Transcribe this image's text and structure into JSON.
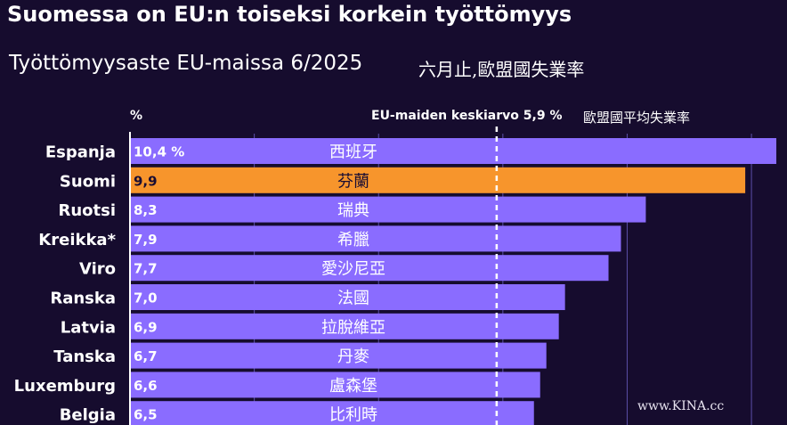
{
  "title": "Suomessa on EU:n toiseksi korkein työttömyys",
  "subtitle": "Työttömyysaste EU-maissa 6/2025",
  "subtitle_zh": "六月止,歐盟國失業率",
  "watermark": "www.KINA.cc",
  "colors": {
    "background": "#160c2e",
    "bar": "#8a6cff",
    "highlight": "#f7952c",
    "grid": "#5b4fa8"
  },
  "chart_data": {
    "type": "bar",
    "orientation": "horizontal",
    "unit_label": "%",
    "average": {
      "value": 5.9,
      "label": "EU-maiden keskiarvo 5,9 %",
      "label_zh": "歐盟國平均失業率"
    },
    "xlim": [
      0,
      10.4
    ],
    "gridlines": [
      2,
      4,
      6,
      8,
      10
    ],
    "highlight_category": "Suomi",
    "categories": [
      "Espanja",
      "Suomi",
      "Ruotsi",
      "Kreikka*",
      "Viro",
      "Ranska",
      "Latvia",
      "Tanska",
      "Luxemburg",
      "Belgia"
    ],
    "categories_zh": [
      "西班牙",
      "芬蘭",
      "瑞典",
      "希臘",
      "愛沙尼亞",
      "法國",
      "拉脫維亞",
      "丹麥",
      "盧森堡",
      "比利時"
    ],
    "values": [
      10.4,
      9.9,
      8.3,
      7.9,
      7.7,
      7.0,
      6.9,
      6.7,
      6.6,
      6.5
    ],
    "value_labels": [
      "10,4 %",
      "9,9",
      "8,3",
      "7,9",
      "7,7",
      "7,0",
      "6,9",
      "6,7",
      "6,6",
      "6,5"
    ]
  }
}
